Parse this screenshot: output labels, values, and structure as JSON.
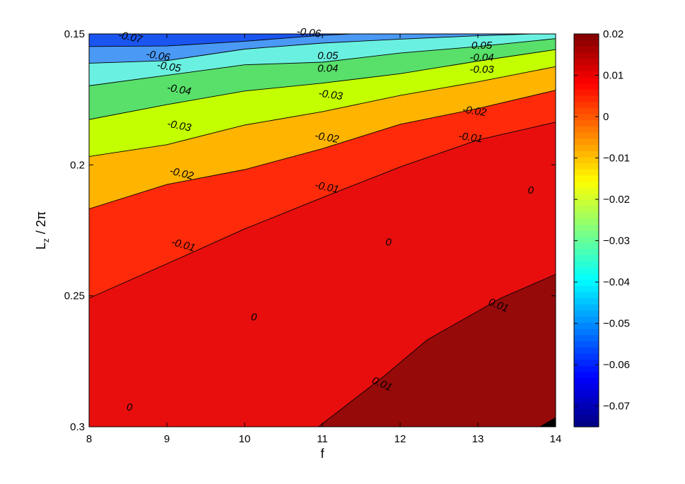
{
  "chart_data": {
    "type": "contour",
    "xlabel": "f",
    "ylabel_main": "L",
    "ylabel_sub": "z",
    "ylabel_rest": "/ 2π",
    "xlim": [
      8,
      14
    ],
    "ylim": [
      0.15,
      0.3
    ],
    "y_reversed": true,
    "x_ticks": [
      "8",
      "9",
      "10",
      "11",
      "12",
      "13",
      "14"
    ],
    "y_ticks": [
      "0.15",
      "0.2",
      "0.25",
      "0.3"
    ],
    "colorbar": {
      "range": [
        -0.075,
        0.02
      ],
      "ticks": [
        "0.02",
        "0.01",
        "0",
        "−0.01",
        "−0.02",
        "−0.03",
        "−0.04",
        "−0.05",
        "−0.06",
        "−0.07"
      ],
      "tick_values": [
        0.02,
        0.01,
        0,
        -0.01,
        -0.02,
        -0.03,
        -0.04,
        -0.05,
        -0.06,
        -0.07
      ],
      "colormap": "jet"
    },
    "levels": [
      -0.07,
      -0.06,
      -0.05,
      -0.04,
      -0.03,
      -0.02,
      -0.01,
      0,
      0.01,
      0.02
    ],
    "band_colors": [
      "#0a1ee6",
      "#1a55f0",
      "#4a99f5",
      "#6af0e0",
      "#58e06a",
      "#c3ff00",
      "#ffb400",
      "#ff2a0a",
      "#e80e0e",
      "#960a0a"
    ],
    "contours": [
      {
        "level": -0.07,
        "points": [
          [
            8,
            0.1492
          ],
          [
            9,
            0.1489
          ],
          [
            10,
            0.1488
          ],
          [
            11,
            0.1484
          ],
          [
            12,
            0.1482
          ],
          [
            13,
            0.1481
          ],
          [
            14,
            0.148
          ]
        ]
      },
      {
        "level": -0.06,
        "points": [
          [
            8,
            0.1548
          ],
          [
            9,
            0.1546
          ],
          [
            10,
            0.1528
          ],
          [
            11,
            0.1505
          ],
          [
            12,
            0.1492
          ],
          [
            13,
            0.1487
          ],
          [
            14,
            0.1484
          ]
        ]
      },
      {
        "level": -0.05,
        "points": [
          [
            8,
            0.1612
          ],
          [
            9,
            0.1602
          ],
          [
            10,
            0.1558
          ],
          [
            11,
            0.1535
          ],
          [
            12,
            0.152
          ],
          [
            13,
            0.1507
          ],
          [
            14,
            0.1497
          ]
        ]
      },
      {
        "level": -0.04,
        "points": [
          [
            8,
            0.1698
          ],
          [
            9,
            0.1658
          ],
          [
            10,
            0.1618
          ],
          [
            11,
            0.1608
          ],
          [
            12,
            0.1573
          ],
          [
            13,
            0.1548
          ],
          [
            14,
            0.1518
          ]
        ]
      },
      {
        "level": -0.03,
        "points": [
          [
            8,
            0.1827
          ],
          [
            9,
            0.177
          ],
          [
            10,
            0.1718
          ],
          [
            11,
            0.1688
          ],
          [
            12,
            0.1652
          ],
          [
            13,
            0.1604
          ],
          [
            14,
            0.156
          ]
        ]
      },
      {
        "level": -0.02,
        "points": [
          [
            8,
            0.1968
          ],
          [
            9,
            0.1923
          ],
          [
            10,
            0.1848
          ],
          [
            11,
            0.1797
          ],
          [
            12,
            0.1735
          ],
          [
            13,
            0.1683
          ],
          [
            14,
            0.1625
          ]
        ]
      },
      {
        "level": -0.01,
        "points": [
          [
            8,
            0.2168
          ],
          [
            9,
            0.2075
          ],
          [
            10,
            0.2018
          ],
          [
            11,
            0.1938
          ],
          [
            12,
            0.1845
          ],
          [
            13,
            0.1785
          ],
          [
            14,
            0.1715
          ]
        ]
      },
      {
        "level": 0.0,
        "points": [
          [
            8,
            0.2509
          ],
          [
            9,
            0.2378
          ],
          [
            10,
            0.2245
          ],
          [
            11,
            0.2125
          ],
          [
            12,
            0.2008
          ],
          [
            13,
            0.1905
          ],
          [
            14,
            0.1837
          ]
        ]
      },
      {
        "level": 0.01,
        "points": [
          [
            10.95,
            0.3
          ],
          [
            11.8,
            0.2805
          ],
          [
            12.35,
            0.2668
          ],
          [
            13.3,
            0.2508
          ],
          [
            14,
            0.2418
          ]
        ]
      },
      {
        "level": 0.02,
        "points": [
          [
            13.8,
            0.3
          ],
          [
            14,
            0.2965
          ]
        ]
      }
    ],
    "contour_labels": [
      {
        "text": "-0.07",
        "x": 8.52,
        "y": 0.1525,
        "angle": 12
      },
      {
        "text": "-0.06",
        "x": 8.88,
        "y": 0.1596,
        "angle": 9
      },
      {
        "text": "-0.05",
        "x": 9.02,
        "y": 0.1638,
        "angle": 9
      },
      {
        "text": "-0.04",
        "x": 9.15,
        "y": 0.1725,
        "angle": 10
      },
      {
        "text": "-0.03",
        "x": 9.15,
        "y": 0.1863,
        "angle": 11
      },
      {
        "text": "-0.02",
        "x": 9.18,
        "y": 0.2045,
        "angle": 14
      },
      {
        "text": "-0.01",
        "x": 9.2,
        "y": 0.2318,
        "angle": 16
      },
      {
        "text": "0",
        "x": 8.52,
        "y": 0.2938,
        "angle": 0
      },
      {
        "text": "-0.06",
        "x": 10.82,
        "y": 0.1508,
        "angle": 6
      },
      {
        "text": "0.05",
        "x": 11.07,
        "y": 0.1596,
        "angle": 0
      },
      {
        "text": "0.04",
        "x": 11.07,
        "y": 0.1645,
        "angle": 0
      },
      {
        "text": "-0.03",
        "x": 11.1,
        "y": 0.1745,
        "angle": 8
      },
      {
        "text": "-0.02",
        "x": 11.05,
        "y": 0.1908,
        "angle": 10
      },
      {
        "text": "-0.01",
        "x": 11.05,
        "y": 0.2098,
        "angle": 12
      },
      {
        "text": "0",
        "x": 10.12,
        "y": 0.2594,
        "angle": 0
      },
      {
        "text": "0",
        "x": 11.85,
        "y": 0.2308,
        "angle": 0
      },
      {
        "text": "-0.01",
        "x": 12.9,
        "y": 0.1908,
        "angle": 8
      },
      {
        "text": "0.05",
        "x": 13.05,
        "y": 0.1556,
        "angle": 0
      },
      {
        "text": "-0.04",
        "x": 13.05,
        "y": 0.1603,
        "angle": 0
      },
      {
        "text": "-0.03",
        "x": 13.05,
        "y": 0.1648,
        "angle": 0
      },
      {
        "text": "-0.02",
        "x": 12.95,
        "y": 0.1807,
        "angle": 8
      },
      {
        "text": "0",
        "x": 13.68,
        "y": 0.211,
        "angle": 0
      },
      {
        "text": "0.01",
        "x": 13.25,
        "y": 0.2548,
        "angle": 22
      },
      {
        "text": "0.01",
        "x": 11.75,
        "y": 0.2848,
        "angle": 24
      }
    ]
  }
}
